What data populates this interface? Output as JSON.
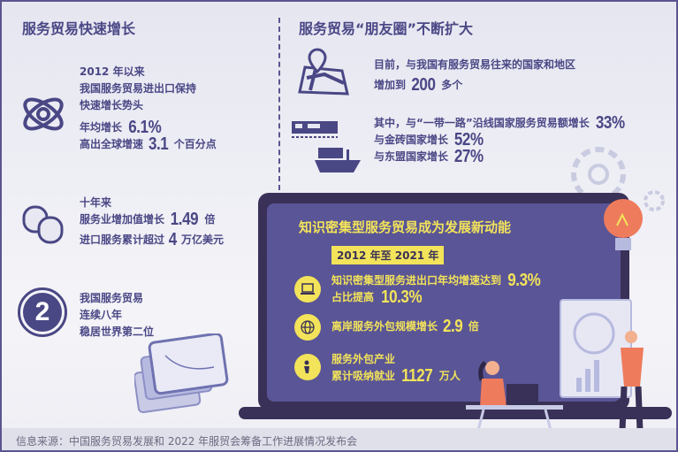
{
  "left": {
    "title": "服务贸易快速增长",
    "block1": {
      "l1": "2012 年以来",
      "l2": "我国服务贸易进出口保持",
      "l3": "快速增长势头",
      "l4a": "年均增长",
      "l4b": "6.1%",
      "l5a": "高出全球增速",
      "l5b": "3.1",
      "l5c": "个百分点",
      "icon": "atom-icon"
    },
    "block2": {
      "l1": "十年来",
      "l2a": "服务业增加值增长",
      "l2b": "1.49",
      "l2c": "倍",
      "l3a": "进口服务累计超过",
      "l3b": "4",
      "l3c": "万亿美元",
      "icon": "coins-icon"
    },
    "block3": {
      "badge": "2",
      "l1": "我国服务贸易",
      "l2": "连续八年",
      "l3": "稳居世界第二位"
    }
  },
  "right": {
    "title": "服务贸易“朋友圈”不断扩大",
    "block1": {
      "l1": "目前，与我国有服务贸易往来的国家和地区",
      "l2a": "增加到",
      "l2b": "200",
      "l2c": "多个",
      "icon": "map-pin-icon"
    },
    "block2": {
      "l1a": "其中，与“一带一路”沿线国家服务贸易额增长",
      "l1b": "33%",
      "l2a": "与金砖国家增长",
      "l2b": "52%",
      "l3a": "与东盟国家增长",
      "l3b": "27%",
      "icon": "train-ship-icon"
    }
  },
  "screen": {
    "title": "知识密集型服务贸易成为发展新动能",
    "period": "2012 年至 2021 年",
    "item1": {
      "l1a": "知识密集型服务进出口年均增速达到",
      "l1b": "9.3%",
      "l2a": "占比提高",
      "l2b": "10.3%"
    },
    "item2": {
      "l1a": "离岸服务外包规模增长",
      "l1b": "2.9",
      "l1c": "倍"
    },
    "item3": {
      "l1": "服务外包产业",
      "l2a": "累计吸纳就业",
      "l2b": "1127",
      "l2c": "万人"
    }
  },
  "footer": {
    "source": "信息来源：中国服务贸易发展和 2022 年服贸会筹备工作进展情况发布会"
  },
  "colors": {
    "primary": "#4a4785",
    "accent": "#f2e35a",
    "screen": "#5a5596",
    "frame": "#3a3158"
  }
}
